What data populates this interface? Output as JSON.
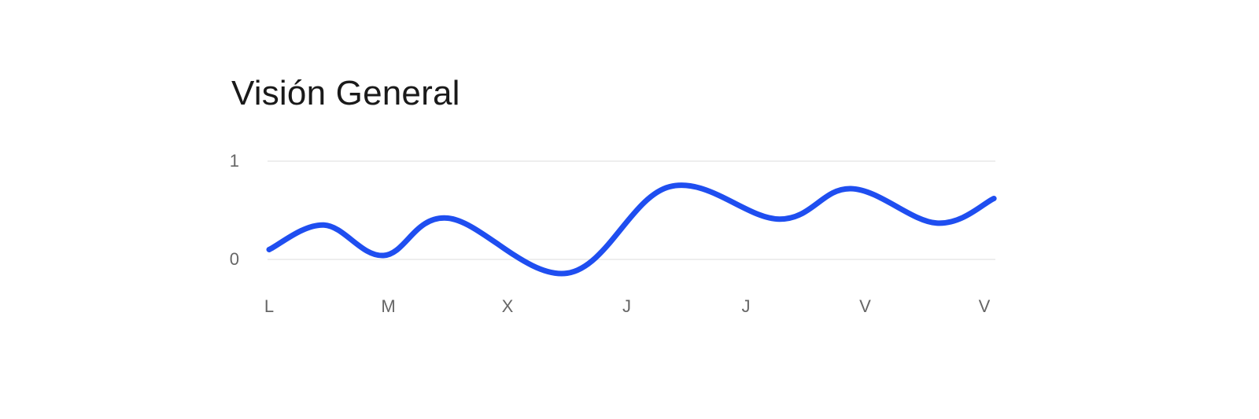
{
  "chart_data": {
    "type": "line",
    "title": "Visión General",
    "xlabel": "",
    "ylabel": "",
    "y_ticks": [
      "0",
      "1"
    ],
    "ylim": [
      0,
      1
    ],
    "categories": [
      "L",
      "M",
      "X",
      "J",
      "J",
      "V",
      "V"
    ],
    "points": [
      {
        "x": 0.0,
        "y": 0.1
      },
      {
        "x": 0.46,
        "y": 0.35
      },
      {
        "x": 0.96,
        "y": 0.04
      },
      {
        "x": 1.5,
        "y": 0.42
      },
      {
        "x": 2.5,
        "y": -0.14
      },
      {
        "x": 3.36,
        "y": 0.74
      },
      {
        "x": 4.28,
        "y": 0.41
      },
      {
        "x": 4.88,
        "y": 0.72
      },
      {
        "x": 5.6,
        "y": 0.37
      },
      {
        "x": 6.08,
        "y": 0.62
      }
    ],
    "line_color": "#1f4ef0",
    "grid": true,
    "legend": "none"
  }
}
